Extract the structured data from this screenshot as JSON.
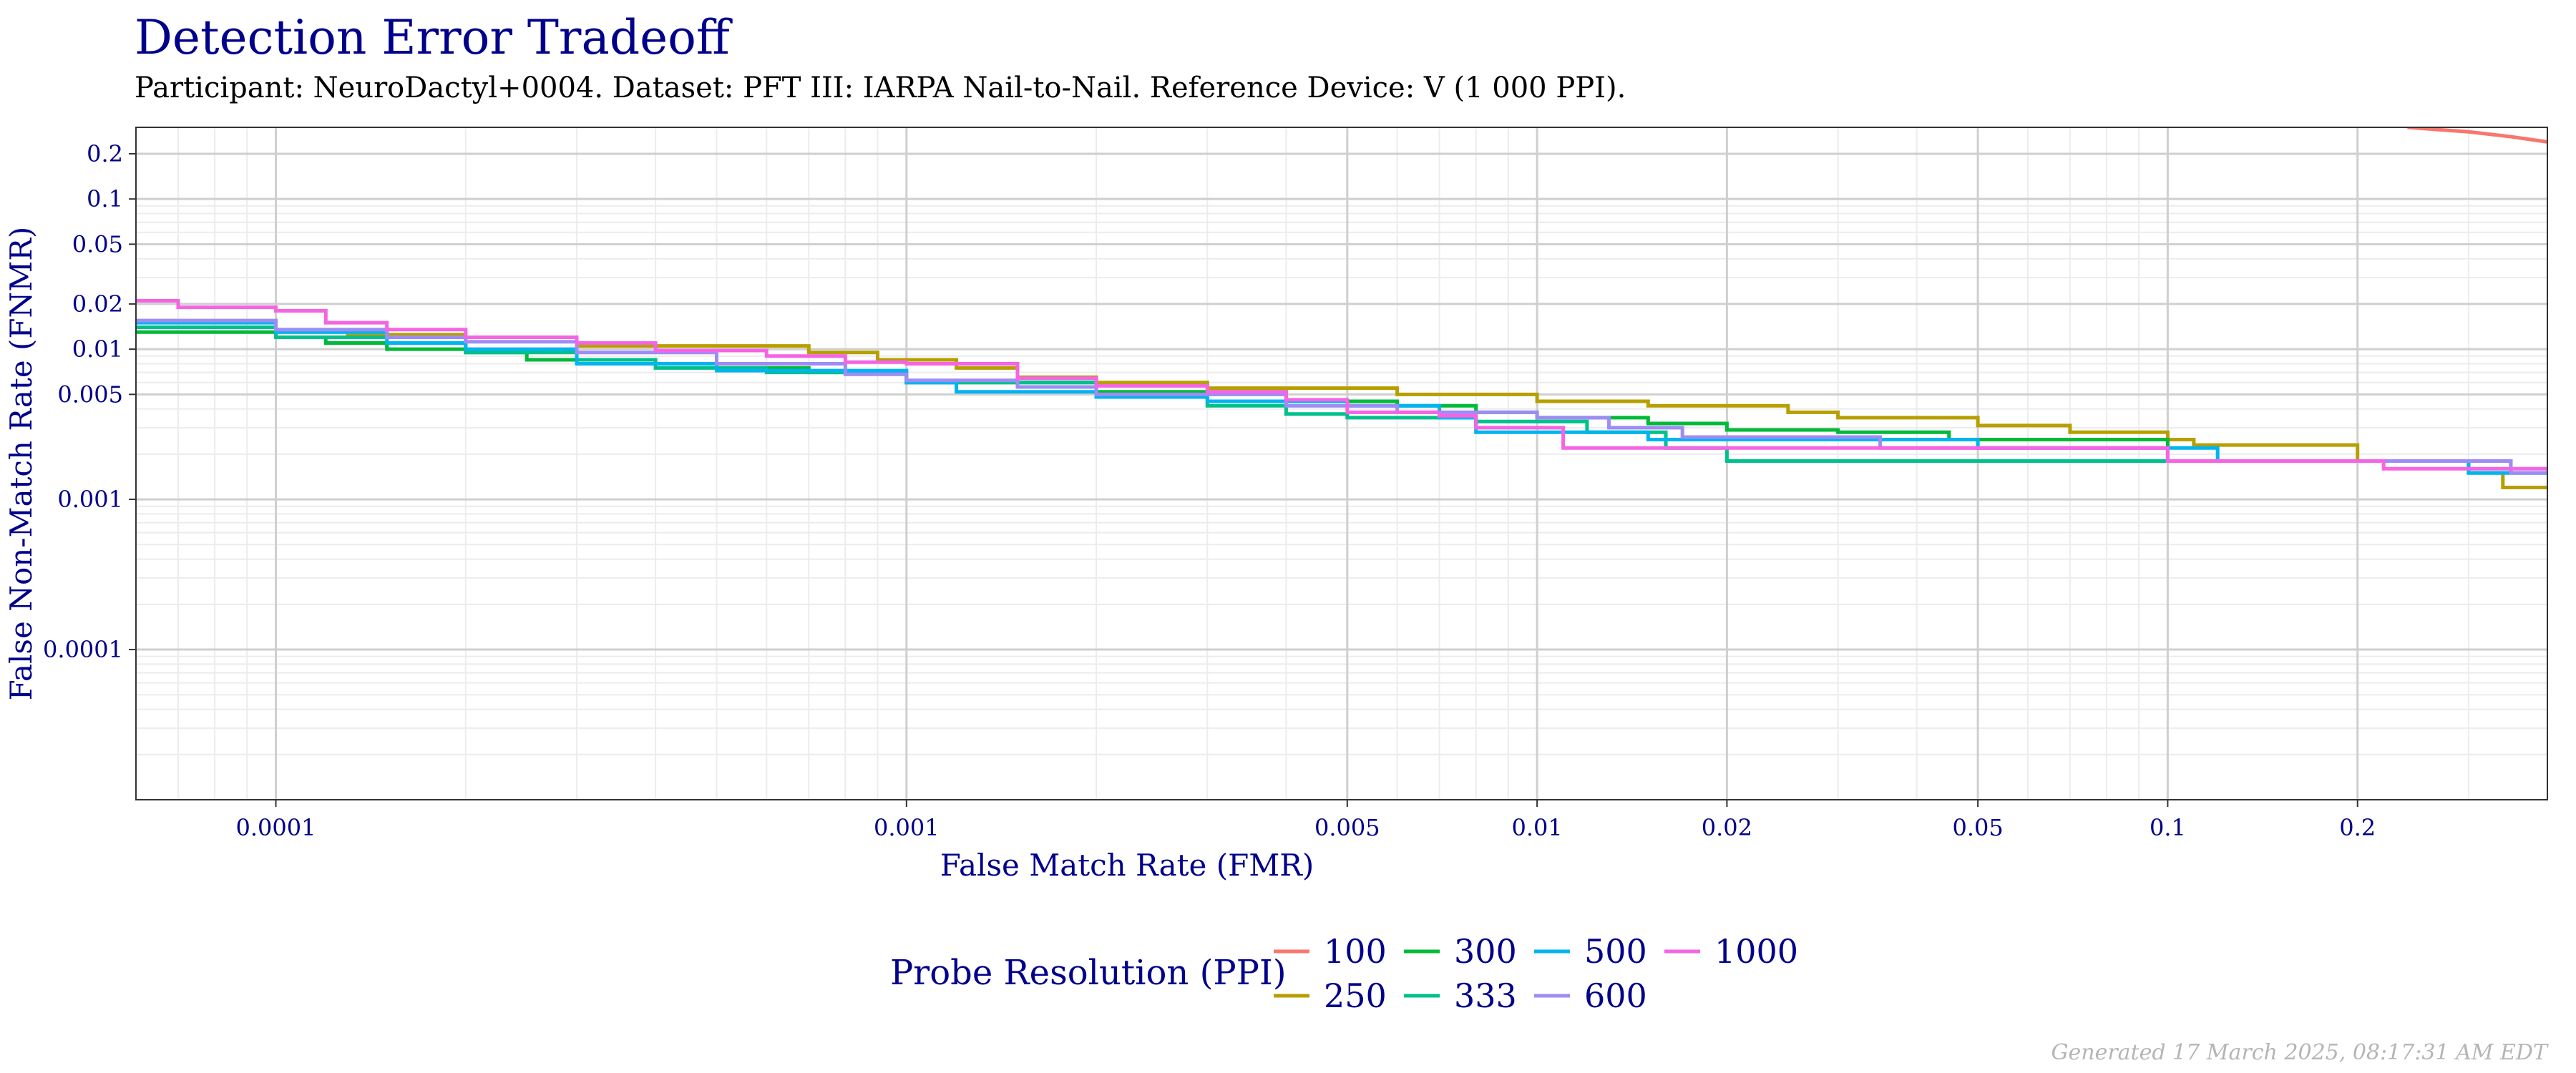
{
  "title": "Detection Error Tradeoff",
  "subtitle": "Participant: NeuroDactyl+0004. Dataset: PFT III: IARPA Nail-to-Nail. Reference Device: V (1 000 PPI).",
  "footer": "Generated 17 March 2025, 08:17:31 AM EDT",
  "colors": {
    "text": "#00008b",
    "grid_major": "#cfcfcf",
    "grid_minor": "#ececec",
    "panel_border": "#333333"
  },
  "chart_data": {
    "type": "line",
    "xlabel": "False Match Rate (FMR)",
    "ylabel": "False Non-Match Rate (FNMR)",
    "x_scale": "log",
    "y_scale": "log",
    "xlim": [
      6e-05,
      0.4
    ],
    "ylim": [
      1e-05,
      0.3
    ],
    "x_ticks": [
      {
        "value": 0.0001,
        "label": "0.0001"
      },
      {
        "value": 0.001,
        "label": "0.001"
      },
      {
        "value": 0.005,
        "label": "0.005"
      },
      {
        "value": 0.01,
        "label": "0.01"
      },
      {
        "value": 0.02,
        "label": "0.02"
      },
      {
        "value": 0.05,
        "label": "0.05"
      },
      {
        "value": 0.1,
        "label": "0.1"
      },
      {
        "value": 0.2,
        "label": "0.2"
      }
    ],
    "y_ticks": [
      {
        "value": 0.0001,
        "label": "0.0001"
      },
      {
        "value": 0.001,
        "label": "0.001"
      },
      {
        "value": 0.005,
        "label": "0.005"
      },
      {
        "value": 0.01,
        "label": "0.01"
      },
      {
        "value": 0.02,
        "label": "0.02"
      },
      {
        "value": 0.05,
        "label": "0.05"
      },
      {
        "value": 0.1,
        "label": "0.1"
      },
      {
        "value": 0.2,
        "label": "0.2"
      }
    ],
    "grid": true,
    "legend_title": "Probe Resolution (PPI)",
    "legend_position": "bottom",
    "series": [
      {
        "name": "100",
        "color": "#f8766d",
        "step": false,
        "points": [
          [
            0.24,
            0.3
          ],
          [
            0.3,
            0.28
          ],
          [
            0.35,
            0.26
          ],
          [
            0.4,
            0.24
          ]
        ]
      },
      {
        "name": "250",
        "color": "#b79f00",
        "step": true,
        "points": [
          [
            6e-05,
            0.014
          ],
          [
            0.0001,
            0.013
          ],
          [
            0.00013,
            0.0125
          ],
          [
            0.0002,
            0.012
          ],
          [
            0.0003,
            0.0105
          ],
          [
            0.0005,
            0.0105
          ],
          [
            0.0007,
            0.0095
          ],
          [
            0.0009,
            0.0085
          ],
          [
            0.0012,
            0.0075
          ],
          [
            0.0015,
            0.0065
          ],
          [
            0.002,
            0.006
          ],
          [
            0.003,
            0.0055
          ],
          [
            0.005,
            0.0055
          ],
          [
            0.006,
            0.005
          ],
          [
            0.01,
            0.0045
          ],
          [
            0.015,
            0.0042
          ],
          [
            0.025,
            0.0038
          ],
          [
            0.03,
            0.0035
          ],
          [
            0.05,
            0.0031
          ],
          [
            0.07,
            0.0028
          ],
          [
            0.1,
            0.0025
          ],
          [
            0.11,
            0.0023
          ],
          [
            0.2,
            0.0018
          ],
          [
            0.3,
            0.0015
          ],
          [
            0.34,
            0.0012
          ],
          [
            0.4,
            0.0012
          ]
        ]
      },
      {
        "name": "300",
        "color": "#00ba38",
        "step": true,
        "points": [
          [
            6e-05,
            0.013
          ],
          [
            0.0001,
            0.012
          ],
          [
            0.00012,
            0.011
          ],
          [
            0.00015,
            0.01
          ],
          [
            0.0002,
            0.0095
          ],
          [
            0.00025,
            0.0085
          ],
          [
            0.0003,
            0.008
          ],
          [
            0.0005,
            0.0075
          ],
          [
            0.0007,
            0.007
          ],
          [
            0.001,
            0.006
          ],
          [
            0.002,
            0.0052
          ],
          [
            0.004,
            0.0045
          ],
          [
            0.006,
            0.0042
          ],
          [
            0.008,
            0.0038
          ],
          [
            0.01,
            0.0035
          ],
          [
            0.015,
            0.0032
          ],
          [
            0.02,
            0.0029
          ],
          [
            0.03,
            0.0028
          ],
          [
            0.045,
            0.0025
          ],
          [
            0.1,
            0.0018
          ],
          [
            0.25,
            0.0018
          ],
          [
            0.35,
            0.0015
          ],
          [
            0.4,
            0.0015
          ]
        ]
      },
      {
        "name": "333",
        "color": "#00c08b",
        "step": true,
        "points": [
          [
            6e-05,
            0.014
          ],
          [
            0.0001,
            0.012
          ],
          [
            0.0002,
            0.0095
          ],
          [
            0.0003,
            0.0085
          ],
          [
            0.0004,
            0.0075
          ],
          [
            0.0006,
            0.007
          ],
          [
            0.001,
            0.006
          ],
          [
            0.002,
            0.0048
          ],
          [
            0.003,
            0.0042
          ],
          [
            0.004,
            0.0037
          ],
          [
            0.005,
            0.0035
          ],
          [
            0.008,
            0.0033
          ],
          [
            0.012,
            0.0028
          ],
          [
            0.016,
            0.0022
          ],
          [
            0.02,
            0.0018
          ],
          [
            0.1,
            0.0018
          ],
          [
            0.2,
            0.0018
          ],
          [
            0.3,
            0.0015
          ],
          [
            0.4,
            0.0015
          ]
        ]
      },
      {
        "name": "500",
        "color": "#00b4f0",
        "step": true,
        "points": [
          [
            6e-05,
            0.015
          ],
          [
            0.0001,
            0.013
          ],
          [
            0.00015,
            0.011
          ],
          [
            0.0002,
            0.01
          ],
          [
            0.0003,
            0.008
          ],
          [
            0.0005,
            0.0072
          ],
          [
            0.001,
            0.006
          ],
          [
            0.0012,
            0.0052
          ],
          [
            0.0015,
            0.0052
          ],
          [
            0.002,
            0.0048
          ],
          [
            0.003,
            0.0045
          ],
          [
            0.005,
            0.0042
          ],
          [
            0.007,
            0.0035
          ],
          [
            0.008,
            0.0028
          ],
          [
            0.01,
            0.0028
          ],
          [
            0.015,
            0.0025
          ],
          [
            0.025,
            0.0025
          ],
          [
            0.05,
            0.0022
          ],
          [
            0.1,
            0.0022
          ],
          [
            0.12,
            0.0018
          ],
          [
            0.2,
            0.0018
          ],
          [
            0.3,
            0.0015
          ],
          [
            0.4,
            0.0015
          ]
        ]
      },
      {
        "name": "600",
        "color": "#9e8cf5",
        "step": true,
        "points": [
          [
            6e-05,
            0.0155
          ],
          [
            0.0001,
            0.0135
          ],
          [
            0.00015,
            0.012
          ],
          [
            0.0002,
            0.0112
          ],
          [
            0.0003,
            0.0095
          ],
          [
            0.0005,
            0.008
          ],
          [
            0.0008,
            0.0068
          ],
          [
            0.001,
            0.0062
          ],
          [
            0.0015,
            0.0056
          ],
          [
            0.002,
            0.005
          ],
          [
            0.004,
            0.0042
          ],
          [
            0.006,
            0.0038
          ],
          [
            0.01,
            0.0035
          ],
          [
            0.013,
            0.003
          ],
          [
            0.017,
            0.0026
          ],
          [
            0.035,
            0.0022
          ],
          [
            0.05,
            0.0022
          ],
          [
            0.1,
            0.0018
          ],
          [
            0.35,
            0.0015
          ],
          [
            0.4,
            0.0015
          ]
        ]
      },
      {
        "name": "1000",
        "color": "#f564e3",
        "step": true,
        "points": [
          [
            6e-05,
            0.021
          ],
          [
            7e-05,
            0.019
          ],
          [
            0.0001,
            0.018
          ],
          [
            0.00012,
            0.015
          ],
          [
            0.00015,
            0.0135
          ],
          [
            0.0002,
            0.012
          ],
          [
            0.0003,
            0.011
          ],
          [
            0.0004,
            0.0098
          ],
          [
            0.0006,
            0.009
          ],
          [
            0.0008,
            0.0082
          ],
          [
            0.001,
            0.008
          ],
          [
            0.0015,
            0.0064
          ],
          [
            0.002,
            0.0057
          ],
          [
            0.003,
            0.0052
          ],
          [
            0.004,
            0.0046
          ],
          [
            0.005,
            0.0038
          ],
          [
            0.007,
            0.0036
          ],
          [
            0.008,
            0.003
          ],
          [
            0.01,
            0.003
          ],
          [
            0.011,
            0.0022
          ],
          [
            0.05,
            0.0022
          ],
          [
            0.1,
            0.0018
          ],
          [
            0.2,
            0.0018
          ],
          [
            0.22,
            0.0016
          ],
          [
            0.4,
            0.0016
          ]
        ]
      }
    ]
  }
}
